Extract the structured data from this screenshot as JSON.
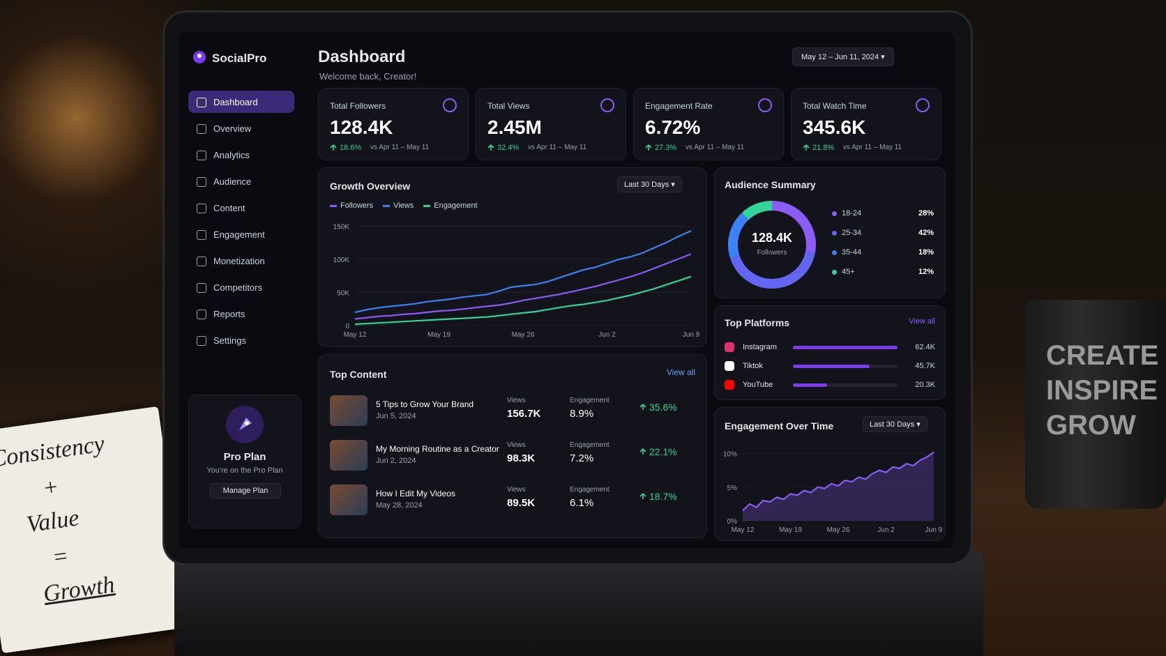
{
  "brand": {
    "name": "SocialPro"
  },
  "sidebar": {
    "nav": [
      "Dashboard",
      "Overview",
      "Analytics",
      "Audience",
      "Content",
      "Engagement",
      "Monetization",
      "Competitors",
      "Reports",
      "Settings"
    ],
    "plan": {
      "title": "Pro Plan",
      "text": "You're on the Pro Plan",
      "button": "Manage Plan"
    }
  },
  "header": {
    "title": "Dashboard",
    "subtitle": "Welcome back, Creator!",
    "date_range": "May 12 – Jun 11, 2024"
  },
  "stats": [
    {
      "label": "Total Followers",
      "value": "128.4K",
      "change": "18.6%",
      "period": "vs Apr 11 – May 11"
    },
    {
      "label": "Total Views",
      "value": "2.45M",
      "change": "32.4%",
      "period": "vs Apr 11 – May 11"
    },
    {
      "label": "Engagement Rate",
      "value": "6.72%",
      "change": "27.3%",
      "period": "vs Apr 11 – May 11"
    },
    {
      "label": "Total Watch Time",
      "value": "345.6K",
      "change": "21.8%",
      "period": "vs Apr 11 – May 11"
    }
  ],
  "growth_overview": {
    "type": "line",
    "title": "Growth Overview",
    "range": "Last 30 Days",
    "categories": [
      "May 12",
      null,
      null,
      null,
      null,
      null,
      null,
      "May 19",
      null,
      null,
      null,
      null,
      null,
      null,
      "May 26",
      null,
      null,
      null,
      null,
      null,
      null,
      "Jun 2",
      null,
      null,
      null,
      null,
      null,
      null,
      "Jun 9"
    ],
    "series": [
      {
        "name": "Followers",
        "color": "#8b5cf6",
        "values": [
          10,
          12,
          14,
          15,
          17,
          18,
          20,
          22,
          23,
          25,
          27,
          29,
          31,
          34,
          38,
          41,
          44,
          47,
          51,
          55,
          59,
          64,
          69,
          74,
          80,
          87,
          94,
          101,
          108
        ]
      },
      {
        "name": "Views",
        "color": "#3b82f6",
        "values": [
          20,
          24,
          27,
          29,
          31,
          33,
          36,
          38,
          40,
          43,
          45,
          47,
          52,
          58,
          60,
          62,
          66,
          72,
          78,
          84,
          88,
          94,
          100,
          104,
          110,
          118,
          126,
          135,
          143
        ]
      },
      {
        "name": "Engagement",
        "color": "#34d399",
        "values": [
          2,
          3,
          4,
          5,
          6,
          7,
          8,
          9,
          10,
          11,
          12,
          13,
          15,
          17,
          19,
          21,
          24,
          27,
          30,
          32,
          35,
          38,
          42,
          46,
          51,
          56,
          62,
          68,
          74
        ]
      }
    ],
    "ylim": [
      0,
      160
    ],
    "yticks": [
      0,
      {
        "value": 50,
        "label": "50K"
      },
      {
        "value": 100,
        "label": "100K"
      },
      {
        "value": 150,
        "label": "150K"
      }
    ]
  },
  "audience_summary": {
    "type": "pie",
    "title": "Audience Summary",
    "center_value": "128.4K",
    "center_label": "Followers",
    "categories": [
      "18-24",
      "25-34",
      "35-44",
      "45+"
    ],
    "values": [
      28,
      42,
      18,
      12
    ],
    "value_labels": [
      "28%",
      "42%",
      "18%",
      "12%"
    ],
    "colors": [
      "#8b5cf6",
      "#6366f1",
      "#3b82f6",
      "#34d399"
    ]
  },
  "top_platforms": {
    "type": "bar",
    "title": "Top Platforms",
    "link": "View all",
    "categories": [
      "Instagram",
      "Tiktok",
      "YouTube"
    ],
    "values": [
      62.4,
      45.7,
      20.3
    ],
    "value_labels": [
      "62.4K",
      "45.7K",
      "20.3K"
    ],
    "color": "#7c3aed"
  },
  "engagement_over_time": {
    "type": "area",
    "title": "Engagement Over Time",
    "range": "Last 30 Days",
    "categories": [
      "May 12",
      null,
      null,
      null,
      null,
      null,
      null,
      "May 19",
      null,
      null,
      null,
      null,
      null,
      null,
      "May 26",
      null,
      null,
      null,
      null,
      null,
      null,
      "Jun 2",
      null,
      null,
      null,
      null,
      null,
      null,
      "Jun 9"
    ],
    "values": [
      1.5,
      2.5,
      2,
      3,
      2.8,
      3.5,
      3.2,
      4,
      3.8,
      4.5,
      4.2,
      5,
      4.8,
      5.5,
      5.2,
      6,
      5.8,
      6.5,
      6.2,
      7,
      7.5,
      7.2,
      8,
      7.8,
      8.5,
      8.2,
      9,
      9.5,
      10.2
    ],
    "ylim": [
      0,
      11
    ],
    "yticks": [
      {
        "value": 0,
        "label": "0%"
      },
      {
        "value": 5,
        "label": "5%"
      },
      {
        "value": 10,
        "label": "10%"
      }
    ],
    "color": "#8b5cf6"
  },
  "top_content": {
    "title": "Top Content",
    "link": "View all",
    "items": [
      {
        "title": "5 Tips to Grow Your Brand",
        "date": "Jun 5, 2024",
        "views_label": "Views",
        "views": "156.7K",
        "engagement_label": "Engagement",
        "engagement": "8.9%",
        "growth": "35.6%"
      },
      {
        "title": "My Morning Routine as a Creator",
        "date": "Jun 2, 2024",
        "views_label": "Views",
        "views": "98.3K",
        "engagement_label": "Engagement",
        "engagement": "7.2%",
        "growth": "22.1%"
      },
      {
        "title": "How I Edit My Videos",
        "date": "May 28, 2024",
        "views_label": "Views",
        "views": "89.5K",
        "engagement_label": "Engagement",
        "engagement": "6.1%",
        "growth": "18.7%"
      }
    ]
  },
  "desk": {
    "notebook": [
      "Consistency",
      "+",
      "Value",
      "=",
      "Growth"
    ],
    "mug": [
      "CREATE",
      "INSPIRE",
      "GROW"
    ]
  }
}
